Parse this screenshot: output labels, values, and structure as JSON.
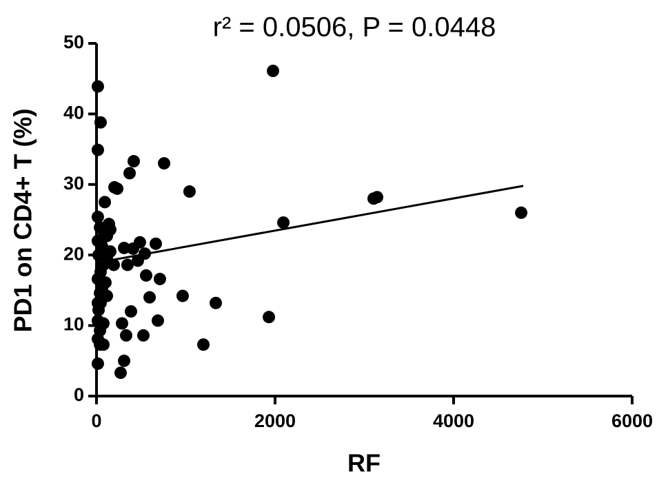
{
  "chart_data": {
    "type": "scatter",
    "title": "r² = 0.0506, P = 0.0448",
    "x_label": "RF",
    "y_label": "PD1 on CD4+ T (%)",
    "color": "#000000",
    "xlim": [
      0,
      6000
    ],
    "ylim": [
      0,
      50
    ],
    "xticks": [
      0,
      2000,
      4000,
      6000
    ],
    "yticks": [
      0,
      10,
      20,
      30,
      40,
      50
    ],
    "x": [
      1977,
      15,
      46,
      15,
      417,
      757,
      371,
      201,
      232,
      1042,
      93,
      3104,
      3143,
      2093,
      4757,
      15,
      139,
      154,
      116,
      39,
      486,
      664,
      309,
      409,
      541,
      463,
      347,
      556,
      710,
      100,
      62,
      116,
      595,
      965,
      1336,
      386,
      1931,
      687,
      286,
      332,
      525,
      77,
      1197,
      15,
      309,
      270,
      15,
      39,
      15,
      23,
      15,
      39,
      15,
      46,
      77,
      23,
      62,
      15,
      116,
      154,
      193,
      77,
      46,
      77,
      39
    ],
    "values": [
      46.1,
      43.9,
      38.8,
      34.9,
      33.3,
      33.0,
      31.6,
      29.6,
      29.4,
      29.0,
      27.5,
      28.0,
      28.2,
      24.6,
      26.0,
      25.4,
      24.4,
      23.6,
      22.7,
      23.9,
      21.8,
      21.6,
      21.0,
      20.9,
      20.2,
      19.2,
      18.6,
      17.1,
      16.6,
      16.1,
      15.1,
      14.2,
      14.0,
      14.2,
      13.2,
      12.0,
      11.2,
      10.7,
      10.3,
      8.6,
      8.6,
      7.3,
      7.3,
      4.6,
      5.0,
      3.3,
      8.1,
      9.3,
      10.7,
      12.2,
      13.2,
      14.6,
      16.6,
      17.6,
      18.6,
      20.0,
      21.2,
      22.0,
      19.5,
      20.5,
      18.6,
      22.5,
      13.2,
      10.3,
      7.3
    ],
    "trend_line": {
      "x": [
        0,
        4780
      ],
      "y": [
        18.9,
        29.8
      ]
    }
  }
}
